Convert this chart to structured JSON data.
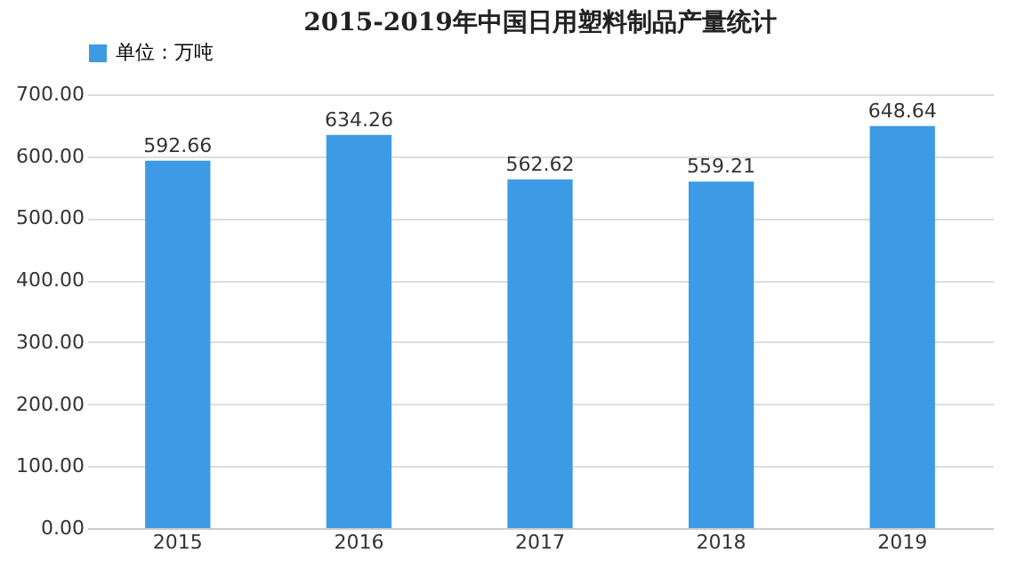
{
  "chart_data": {
    "type": "bar",
    "title": "2015-2019年中国日用塑料制品产量统计",
    "categories": [
      "2015",
      "2016",
      "2017",
      "2018",
      "2019"
    ],
    "series": [
      {
        "name": "单位：万吨",
        "color": "#3d9be6",
        "values": [
          592.66,
          634.26,
          562.62,
          559.21,
          648.64
        ]
      }
    ],
    "ylim": [
      0,
      700
    ],
    "yticks": [
      {
        "value": 0,
        "label": "0.00"
      },
      {
        "value": 100,
        "label": "100.00"
      },
      {
        "value": 200,
        "label": "200.00"
      },
      {
        "value": 300,
        "label": "300.00"
      },
      {
        "value": 400,
        "label": "400.00"
      },
      {
        "value": 500,
        "label": "500.00"
      },
      {
        "value": 600,
        "label": "600.00"
      },
      {
        "value": 700,
        "label": "700.00"
      }
    ],
    "grid": "y",
    "legend": "top",
    "data_labels": true
  }
}
